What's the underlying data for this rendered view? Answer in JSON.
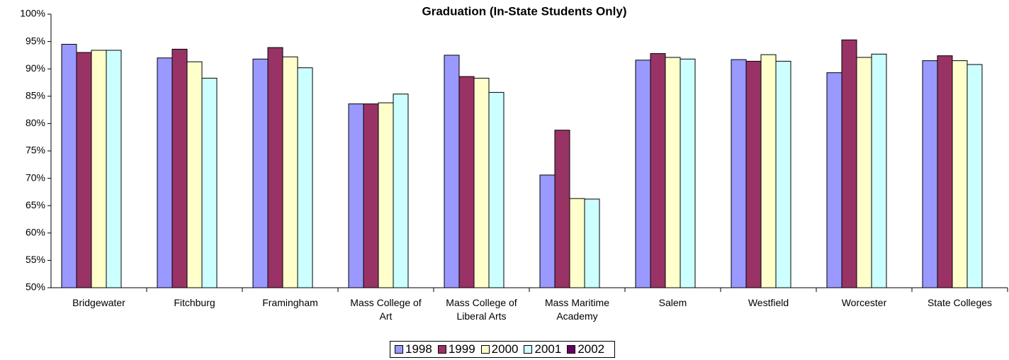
{
  "chart_data": {
    "type": "bar",
    "title": "Graduation (In-State Students Only)",
    "categories": [
      "Bridgewater",
      "Fitchburg",
      "Framingham",
      "Mass College of Art",
      "Mass College of Liberal Arts",
      "Mass Maritime Academy",
      "Salem",
      "Westfield",
      "Worcester",
      "State Colleges"
    ],
    "series": [
      {
        "name": "1998",
        "color": "#9999ff",
        "values": [
          94.5,
          92.0,
          91.8,
          83.6,
          92.5,
          70.6,
          91.6,
          91.7,
          89.3,
          91.5
        ]
      },
      {
        "name": "1999",
        "color": "#993366",
        "values": [
          93.0,
          93.6,
          93.9,
          83.6,
          88.6,
          78.8,
          92.8,
          91.4,
          95.3,
          92.4
        ]
      },
      {
        "name": "2000",
        "color": "#ffffcc",
        "values": [
          93.4,
          91.3,
          92.2,
          83.8,
          88.3,
          66.3,
          92.1,
          92.6,
          92.1,
          91.5
        ]
      },
      {
        "name": "2001",
        "color": "#ccffff",
        "values": [
          93.4,
          88.3,
          90.2,
          85.4,
          85.7,
          66.2,
          91.8,
          91.4,
          92.7,
          90.8
        ]
      },
      {
        "name": "2002",
        "color": "#660066",
        "values": [
          null,
          null,
          null,
          null,
          null,
          null,
          null,
          null,
          null,
          null
        ]
      }
    ],
    "ylim": [
      50,
      100
    ],
    "yticks": [
      {
        "value": 50,
        "label": "50%"
      },
      {
        "value": 55,
        "label": "55%"
      },
      {
        "value": 60,
        "label": "60%"
      },
      {
        "value": 65,
        "label": "65%"
      },
      {
        "value": 70,
        "label": "70%"
      },
      {
        "value": 75,
        "label": "75%"
      },
      {
        "value": 80,
        "label": "80%"
      },
      {
        "value": 85,
        "label": "85%"
      },
      {
        "value": 90,
        "label": "90%"
      },
      {
        "value": 95,
        "label": "95%"
      },
      {
        "value": 100,
        "label": "100%"
      }
    ],
    "grid": false
  }
}
